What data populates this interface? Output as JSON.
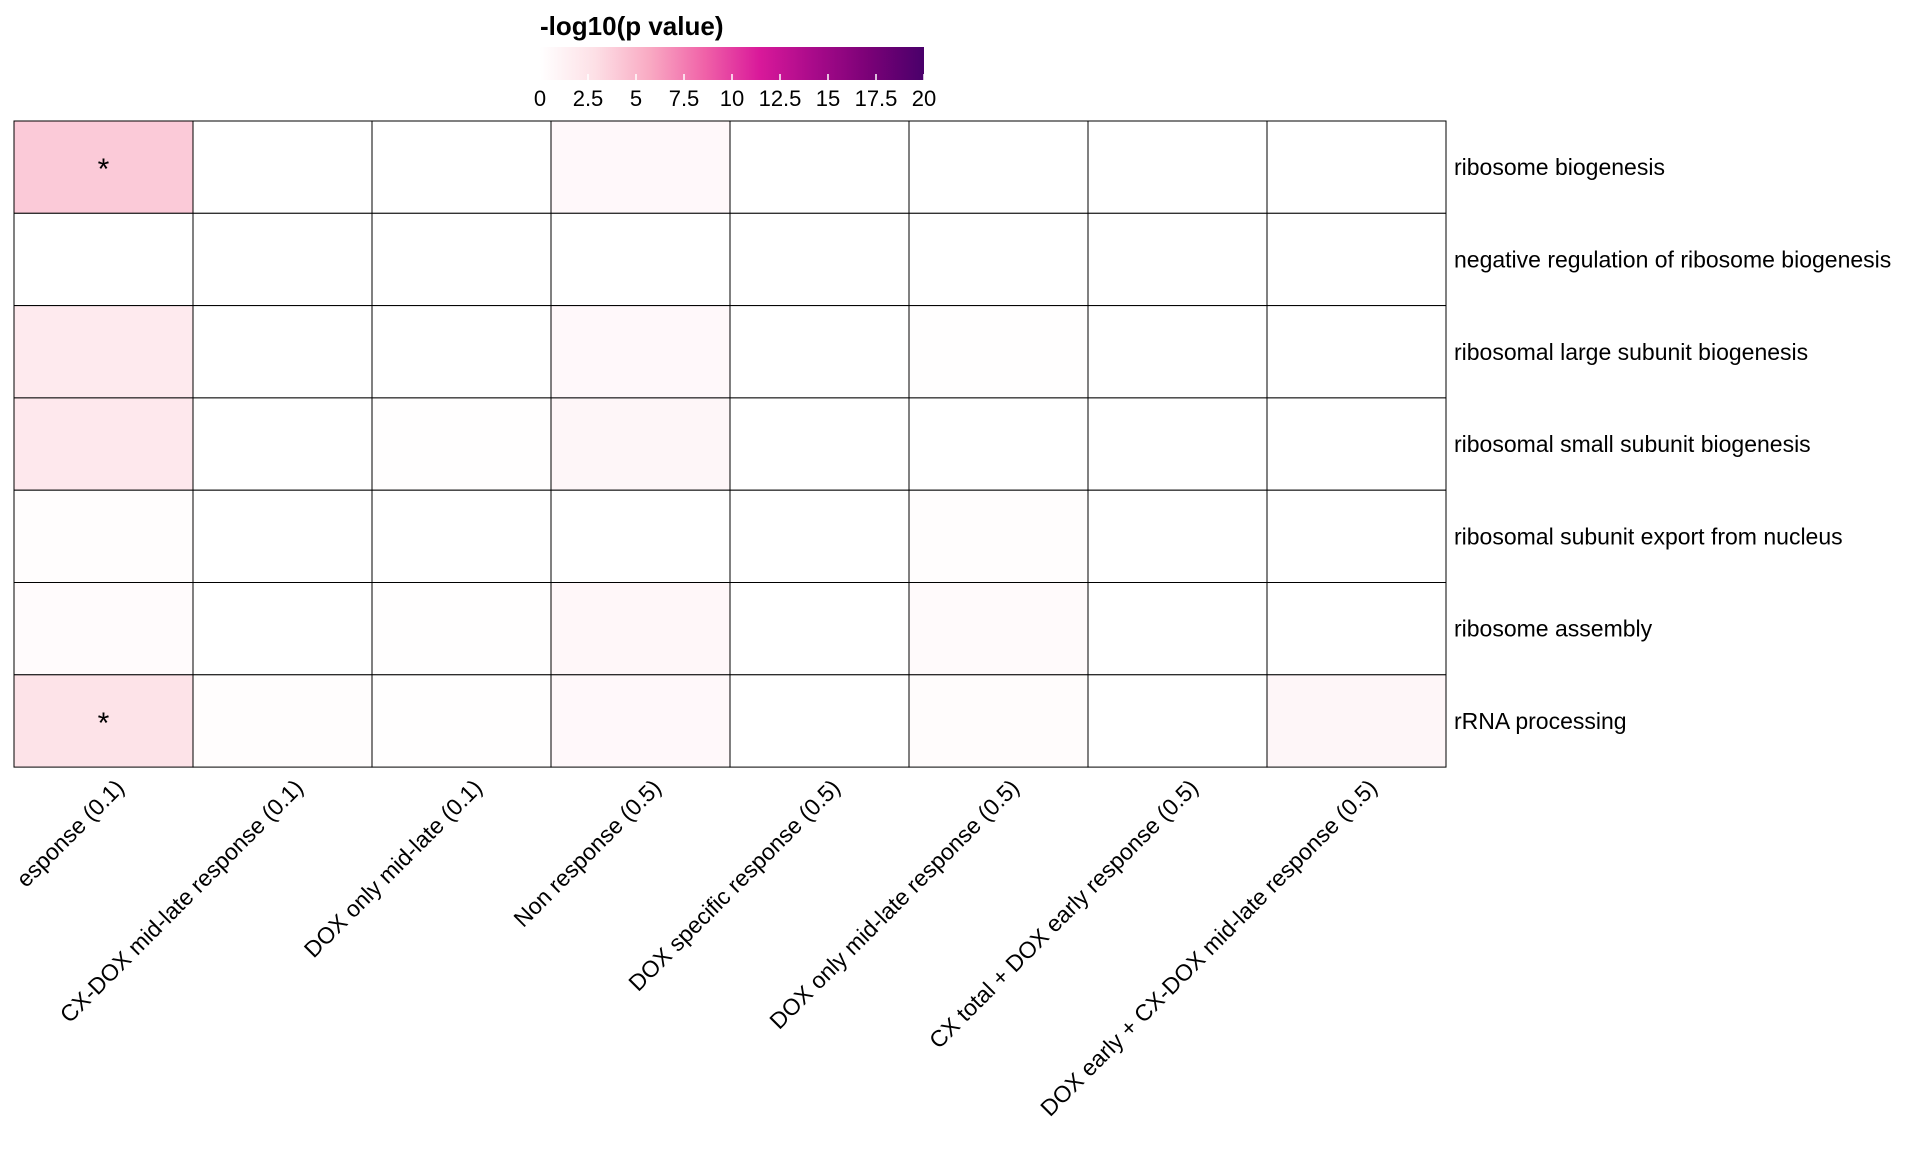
{
  "chart_data": {
    "type": "heatmap",
    "legend": {
      "title": "-log10(p value)",
      "ticks": [
        "0",
        "2.5",
        "5",
        "7.5",
        "10",
        "12.5",
        "15",
        "17.5",
        "20"
      ],
      "range": [
        0,
        20
      ],
      "colors": [
        "#ffffff",
        "#fde0e6",
        "#f9aac3",
        "#f062a8",
        "#d9199a",
        "#a80a8a",
        "#7a0177",
        "#49006a"
      ]
    },
    "rows": [
      "ribosome biogenesis",
      "negative regulation of ribosome biogenesis",
      "ribosomal large subunit biogenesis",
      "ribosomal small subunit biogenesis",
      "ribosomal subunit export from nucleus",
      "ribosome assembly",
      "rRNA processing"
    ],
    "columns": [
      "esponse (0.1)",
      "CX-DOX mid-late response (0.1)",
      "DOX only mid-late (0.1)",
      "Non response (0.5)",
      "DOX specific response (0.5)",
      "DOX only mid-late response (0.5)",
      "CX total + DOX early response (0.5)",
      "DOX early + CX-DOX mid-late response (0.5)"
    ],
    "values": [
      [
        4.0,
        0.0,
        0.0,
        0.6,
        0.0,
        0.0,
        0.0,
        0.0
      ],
      [
        0.0,
        0.0,
        0.0,
        0.0,
        0.0,
        0.0,
        0.0,
        0.0
      ],
      [
        1.9,
        0.0,
        0.0,
        0.6,
        0.0,
        0.1,
        0.0,
        0.0
      ],
      [
        2.1,
        0.0,
        0.1,
        0.8,
        0.0,
        0.0,
        0.0,
        0.0
      ],
      [
        0.2,
        0.0,
        0.0,
        0.0,
        0.0,
        0.2,
        0.0,
        0.0
      ],
      [
        0.4,
        0.0,
        0.1,
        0.7,
        0.0,
        0.5,
        0.0,
        0.0
      ],
      [
        2.6,
        0.2,
        0.1,
        0.6,
        0.0,
        0.3,
        0.0,
        0.8
      ]
    ],
    "significant": [
      [
        true,
        false,
        false,
        false,
        false,
        false,
        false,
        false
      ],
      [
        false,
        false,
        false,
        false,
        false,
        false,
        false,
        false
      ],
      [
        false,
        false,
        false,
        false,
        false,
        false,
        false,
        false
      ],
      [
        false,
        false,
        false,
        false,
        false,
        false,
        false,
        false
      ],
      [
        false,
        false,
        false,
        false,
        false,
        false,
        false,
        false
      ],
      [
        false,
        false,
        false,
        false,
        false,
        false,
        false,
        false
      ],
      [
        true,
        false,
        false,
        false,
        false,
        false,
        false,
        false
      ]
    ],
    "marker": "*"
  }
}
